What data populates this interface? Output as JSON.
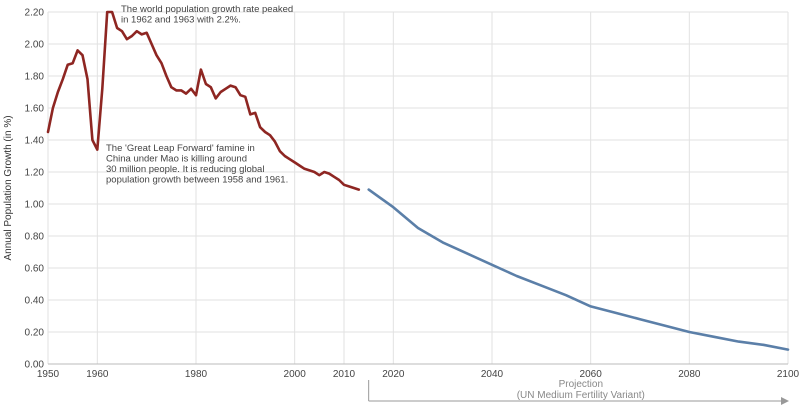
{
  "chart_data": {
    "type": "line",
    "title": "",
    "xlabel": "",
    "ylabel": "Annual Population Growth (in %)",
    "xlim": [
      1950,
      2100
    ],
    "ylim": [
      0,
      2.2
    ],
    "grid": true,
    "x_ticks": [
      1950,
      1960,
      1980,
      2000,
      2010,
      2020,
      2040,
      2060,
      2080,
      2100
    ],
    "y_ticks": [
      "0.00",
      "0.20",
      "0.40",
      "0.60",
      "0.80",
      "1.00",
      "1.20",
      "1.40",
      "1.60",
      "1.80",
      "2.00",
      "2.20"
    ],
    "colors": {
      "historical": "#8e2622",
      "projection": "#5b7fa8",
      "grid": "#e2e2e2",
      "arrow": "#999999"
    },
    "series": [
      {
        "values": [
          [
            1950,
            1.45
          ],
          [
            1951,
            1.6
          ],
          [
            1952,
            1.7
          ],
          [
            1953,
            1.78
          ],
          [
            1954,
            1.87
          ],
          [
            1955,
            1.88
          ],
          [
            1956,
            1.96
          ],
          [
            1957,
            1.93
          ],
          [
            1958,
            1.78
          ],
          [
            1959,
            1.4
          ],
          [
            1960,
            1.34
          ],
          [
            1961,
            1.72
          ],
          [
            1962,
            2.2
          ],
          [
            1963,
            2.2
          ],
          [
            1964,
            2.1
          ],
          [
            1965,
            2.08
          ],
          [
            1966,
            2.03
          ],
          [
            1967,
            2.05
          ],
          [
            1968,
            2.08
          ],
          [
            1969,
            2.06
          ],
          [
            1970,
            2.07
          ],
          [
            1971,
            2.0
          ],
          [
            1972,
            1.93
          ],
          [
            1973,
            1.88
          ],
          [
            1974,
            1.8
          ],
          [
            1975,
            1.73
          ],
          [
            1976,
            1.71
          ],
          [
            1977,
            1.71
          ],
          [
            1978,
            1.69
          ],
          [
            1979,
            1.72
          ],
          [
            1980,
            1.68
          ],
          [
            1981,
            1.84
          ],
          [
            1982,
            1.75
          ],
          [
            1983,
            1.73
          ],
          [
            1984,
            1.66
          ],
          [
            1985,
            1.7
          ],
          [
            1986,
            1.72
          ],
          [
            1987,
            1.74
          ],
          [
            1988,
            1.73
          ],
          [
            1989,
            1.68
          ],
          [
            1990,
            1.67
          ],
          [
            1991,
            1.56
          ],
          [
            1992,
            1.57
          ],
          [
            1993,
            1.48
          ],
          [
            1994,
            1.45
          ],
          [
            1995,
            1.43
          ],
          [
            1996,
            1.39
          ],
          [
            1997,
            1.33
          ],
          [
            1998,
            1.3
          ],
          [
            1999,
            1.28
          ],
          [
            2000,
            1.26
          ],
          [
            2001,
            1.24
          ],
          [
            2002,
            1.22
          ],
          [
            2003,
            1.21
          ],
          [
            2004,
            1.2
          ],
          [
            2005,
            1.18
          ],
          [
            2006,
            1.2
          ],
          [
            2007,
            1.19
          ],
          [
            2008,
            1.17
          ],
          [
            2009,
            1.15
          ],
          [
            2010,
            1.12
          ],
          [
            2011,
            1.11
          ],
          [
            2012,
            1.1
          ],
          [
            2013,
            1.09
          ]
        ]
      },
      {
        "values": [
          [
            2015,
            1.09
          ],
          [
            2020,
            0.98
          ],
          [
            2025,
            0.85
          ],
          [
            2030,
            0.76
          ],
          [
            2035,
            0.69
          ],
          [
            2040,
            0.62
          ],
          [
            2045,
            0.55
          ],
          [
            2050,
            0.49
          ],
          [
            2055,
            0.43
          ],
          [
            2060,
            0.36
          ],
          [
            2065,
            0.32
          ],
          [
            2070,
            0.28
          ],
          [
            2075,
            0.24
          ],
          [
            2080,
            0.2
          ],
          [
            2085,
            0.17
          ],
          [
            2090,
            0.14
          ],
          [
            2095,
            0.12
          ],
          [
            2100,
            0.09
          ]
        ]
      }
    ],
    "annotations": [
      {
        "lines": [
          "The world population growth rate peaked",
          "in 1962 and 1963 with 2.2%."
        ]
      },
      {
        "lines": [
          "The 'Great Leap Forward' famine in",
          "China under Mao is killing around",
          "30 million people. It is reducing global",
          "population growth between 1958 and 1961."
        ]
      }
    ],
    "projection_label": [
      "Projection",
      "(UN Medium Fertility Variant)"
    ]
  }
}
